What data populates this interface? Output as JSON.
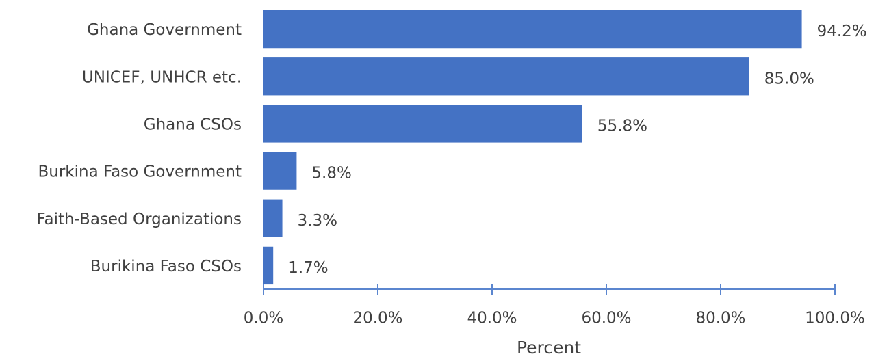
{
  "chart_data": {
    "type": "bar",
    "categories": [
      "Ghana Government",
      "UNICEF, UNHCR etc.",
      "Ghana CSOs",
      "Burkina Faso Government",
      "Faith-Based Organizations",
      "Burikina Faso CSOs"
    ],
    "values": [
      94.2,
      85.0,
      55.8,
      5.8,
      3.3,
      1.7
    ],
    "value_labels": [
      "94.2%",
      "85.0%",
      "55.8%",
      "5.8%",
      "3.3%",
      "1.7%"
    ],
    "color": "#4472c4",
    "xlabel": "Percent",
    "xlim": [
      0,
      100
    ],
    "xticks": [
      {
        "value": 0,
        "label": "0.0%"
      },
      {
        "value": 20,
        "label": "20.0%"
      },
      {
        "value": 40,
        "label": "40.0%"
      },
      {
        "value": 60,
        "label": "60.0%"
      },
      {
        "value": 80,
        "label": "80.0%"
      },
      {
        "value": 100,
        "label": "100.0%"
      }
    ]
  }
}
